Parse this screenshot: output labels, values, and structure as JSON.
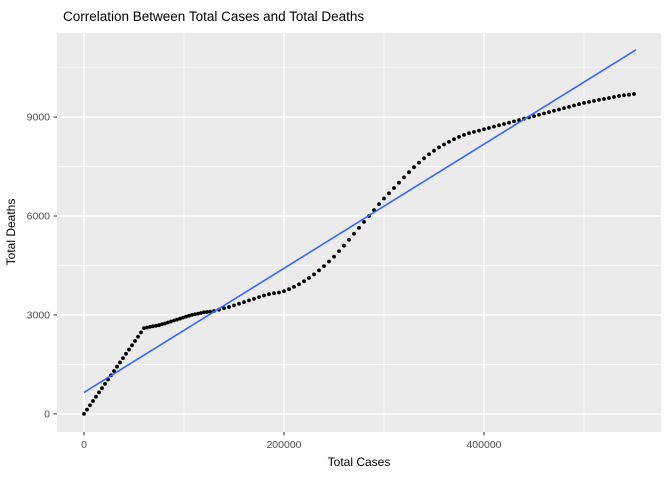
{
  "chart_data": {
    "type": "scatter",
    "title": "Correlation Between Total Cases and Total Deaths",
    "xlabel": "Total Cases",
    "ylabel": "Total Deaths",
    "xlim": [
      -27000,
      577000
    ],
    "ylim": [
      -550,
      11550
    ],
    "x_major_ticks": [
      0,
      200000,
      400000
    ],
    "x_tick_labels": [
      "0",
      "200000",
      "400000"
    ],
    "x_minor_ticks": [
      100000,
      300000,
      500000
    ],
    "y_major_ticks": [
      0,
      3000,
      6000,
      9000
    ],
    "y_tick_labels": [
      "0",
      "3000",
      "6000",
      "9000"
    ],
    "y_minor_ticks": [
      1500,
      4500,
      7500,
      10500
    ],
    "grid": true,
    "legend": "none",
    "panel_bg": "#EBEBEB",
    "grid_color": "#FFFFFF",
    "tick_color": "#333333",
    "tick_label_color": "#4D4D4D",
    "point_color": "#000000",
    "trend_color": "#3366FF",
    "trend_line": {
      "x": [
        0,
        552000
      ],
      "y": [
        650,
        11040
      ]
    },
    "points": [
      [
        0,
        0
      ],
      [
        3000,
        130
      ],
      [
        6000,
        260
      ],
      [
        9000,
        390
      ],
      [
        12000,
        520
      ],
      [
        15000,
        650
      ],
      [
        18000,
        780
      ],
      [
        21000,
        910
      ],
      [
        24000,
        1040
      ],
      [
        27000,
        1170
      ],
      [
        30000,
        1300
      ],
      [
        33000,
        1430
      ],
      [
        36000,
        1560
      ],
      [
        39000,
        1690
      ],
      [
        42000,
        1820
      ],
      [
        45000,
        1950
      ],
      [
        48000,
        2080
      ],
      [
        51000,
        2210
      ],
      [
        54000,
        2340
      ],
      [
        57000,
        2470
      ],
      [
        60000,
        2600
      ],
      [
        63000,
        2620
      ],
      [
        66000,
        2640
      ],
      [
        69000,
        2655
      ],
      [
        72000,
        2670
      ],
      [
        75000,
        2690
      ],
      [
        78000,
        2715
      ],
      [
        81000,
        2740
      ],
      [
        84000,
        2770
      ],
      [
        87000,
        2800
      ],
      [
        90000,
        2830
      ],
      [
        93000,
        2860
      ],
      [
        96000,
        2890
      ],
      [
        99000,
        2920
      ],
      [
        102000,
        2950
      ],
      [
        105000,
        2975
      ],
      [
        108000,
        3000
      ],
      [
        111000,
        3020
      ],
      [
        114000,
        3040
      ],
      [
        117000,
        3060
      ],
      [
        120000,
        3080
      ],
      [
        123000,
        3090
      ],
      [
        126000,
        3100
      ],
      [
        130000,
        3120
      ],
      [
        135000,
        3160
      ],
      [
        140000,
        3200
      ],
      [
        145000,
        3240
      ],
      [
        150000,
        3290
      ],
      [
        155000,
        3340
      ],
      [
        160000,
        3390
      ],
      [
        165000,
        3440
      ],
      [
        170000,
        3490
      ],
      [
        175000,
        3540
      ],
      [
        180000,
        3590
      ],
      [
        185000,
        3630
      ],
      [
        190000,
        3660
      ],
      [
        195000,
        3680
      ],
      [
        200000,
        3720
      ],
      [
        205000,
        3780
      ],
      [
        210000,
        3850
      ],
      [
        215000,
        3930
      ],
      [
        220000,
        4020
      ],
      [
        225000,
        4120
      ],
      [
        230000,
        4230
      ],
      [
        235000,
        4350
      ],
      [
        240000,
        4480
      ],
      [
        245000,
        4620
      ],
      [
        250000,
        4770
      ],
      [
        255000,
        4930
      ],
      [
        260000,
        5100
      ],
      [
        265000,
        5280
      ],
      [
        270000,
        5460
      ],
      [
        275000,
        5640
      ],
      [
        280000,
        5820
      ],
      [
        285000,
        6000
      ],
      [
        290000,
        6180
      ],
      [
        295000,
        6360
      ],
      [
        300000,
        6530
      ],
      [
        305000,
        6690
      ],
      [
        310000,
        6850
      ],
      [
        315000,
        7010
      ],
      [
        320000,
        7170
      ],
      [
        325000,
        7330
      ],
      [
        330000,
        7480
      ],
      [
        335000,
        7620
      ],
      [
        340000,
        7750
      ],
      [
        345000,
        7870
      ],
      [
        350000,
        7980
      ],
      [
        355000,
        8080
      ],
      [
        360000,
        8170
      ],
      [
        365000,
        8250
      ],
      [
        370000,
        8330
      ],
      [
        375000,
        8400
      ],
      [
        380000,
        8460
      ],
      [
        385000,
        8510
      ],
      [
        390000,
        8550
      ],
      [
        395000,
        8590
      ],
      [
        400000,
        8630
      ],
      [
        405000,
        8670
      ],
      [
        410000,
        8710
      ],
      [
        415000,
        8750
      ],
      [
        420000,
        8790
      ],
      [
        425000,
        8830
      ],
      [
        430000,
        8870
      ],
      [
        435000,
        8910
      ],
      [
        440000,
        8950
      ],
      [
        445000,
        8990
      ],
      [
        450000,
        9030
      ],
      [
        455000,
        9070
      ],
      [
        460000,
        9110
      ],
      [
        465000,
        9150
      ],
      [
        470000,
        9190
      ],
      [
        475000,
        9230
      ],
      [
        480000,
        9270
      ],
      [
        485000,
        9310
      ],
      [
        490000,
        9350
      ],
      [
        495000,
        9390
      ],
      [
        500000,
        9430
      ],
      [
        505000,
        9460
      ],
      [
        510000,
        9490
      ],
      [
        515000,
        9520
      ],
      [
        520000,
        9550
      ],
      [
        525000,
        9580
      ],
      [
        530000,
        9610
      ],
      [
        535000,
        9640
      ],
      [
        540000,
        9660
      ],
      [
        545000,
        9680
      ],
      [
        550000,
        9700
      ]
    ]
  }
}
